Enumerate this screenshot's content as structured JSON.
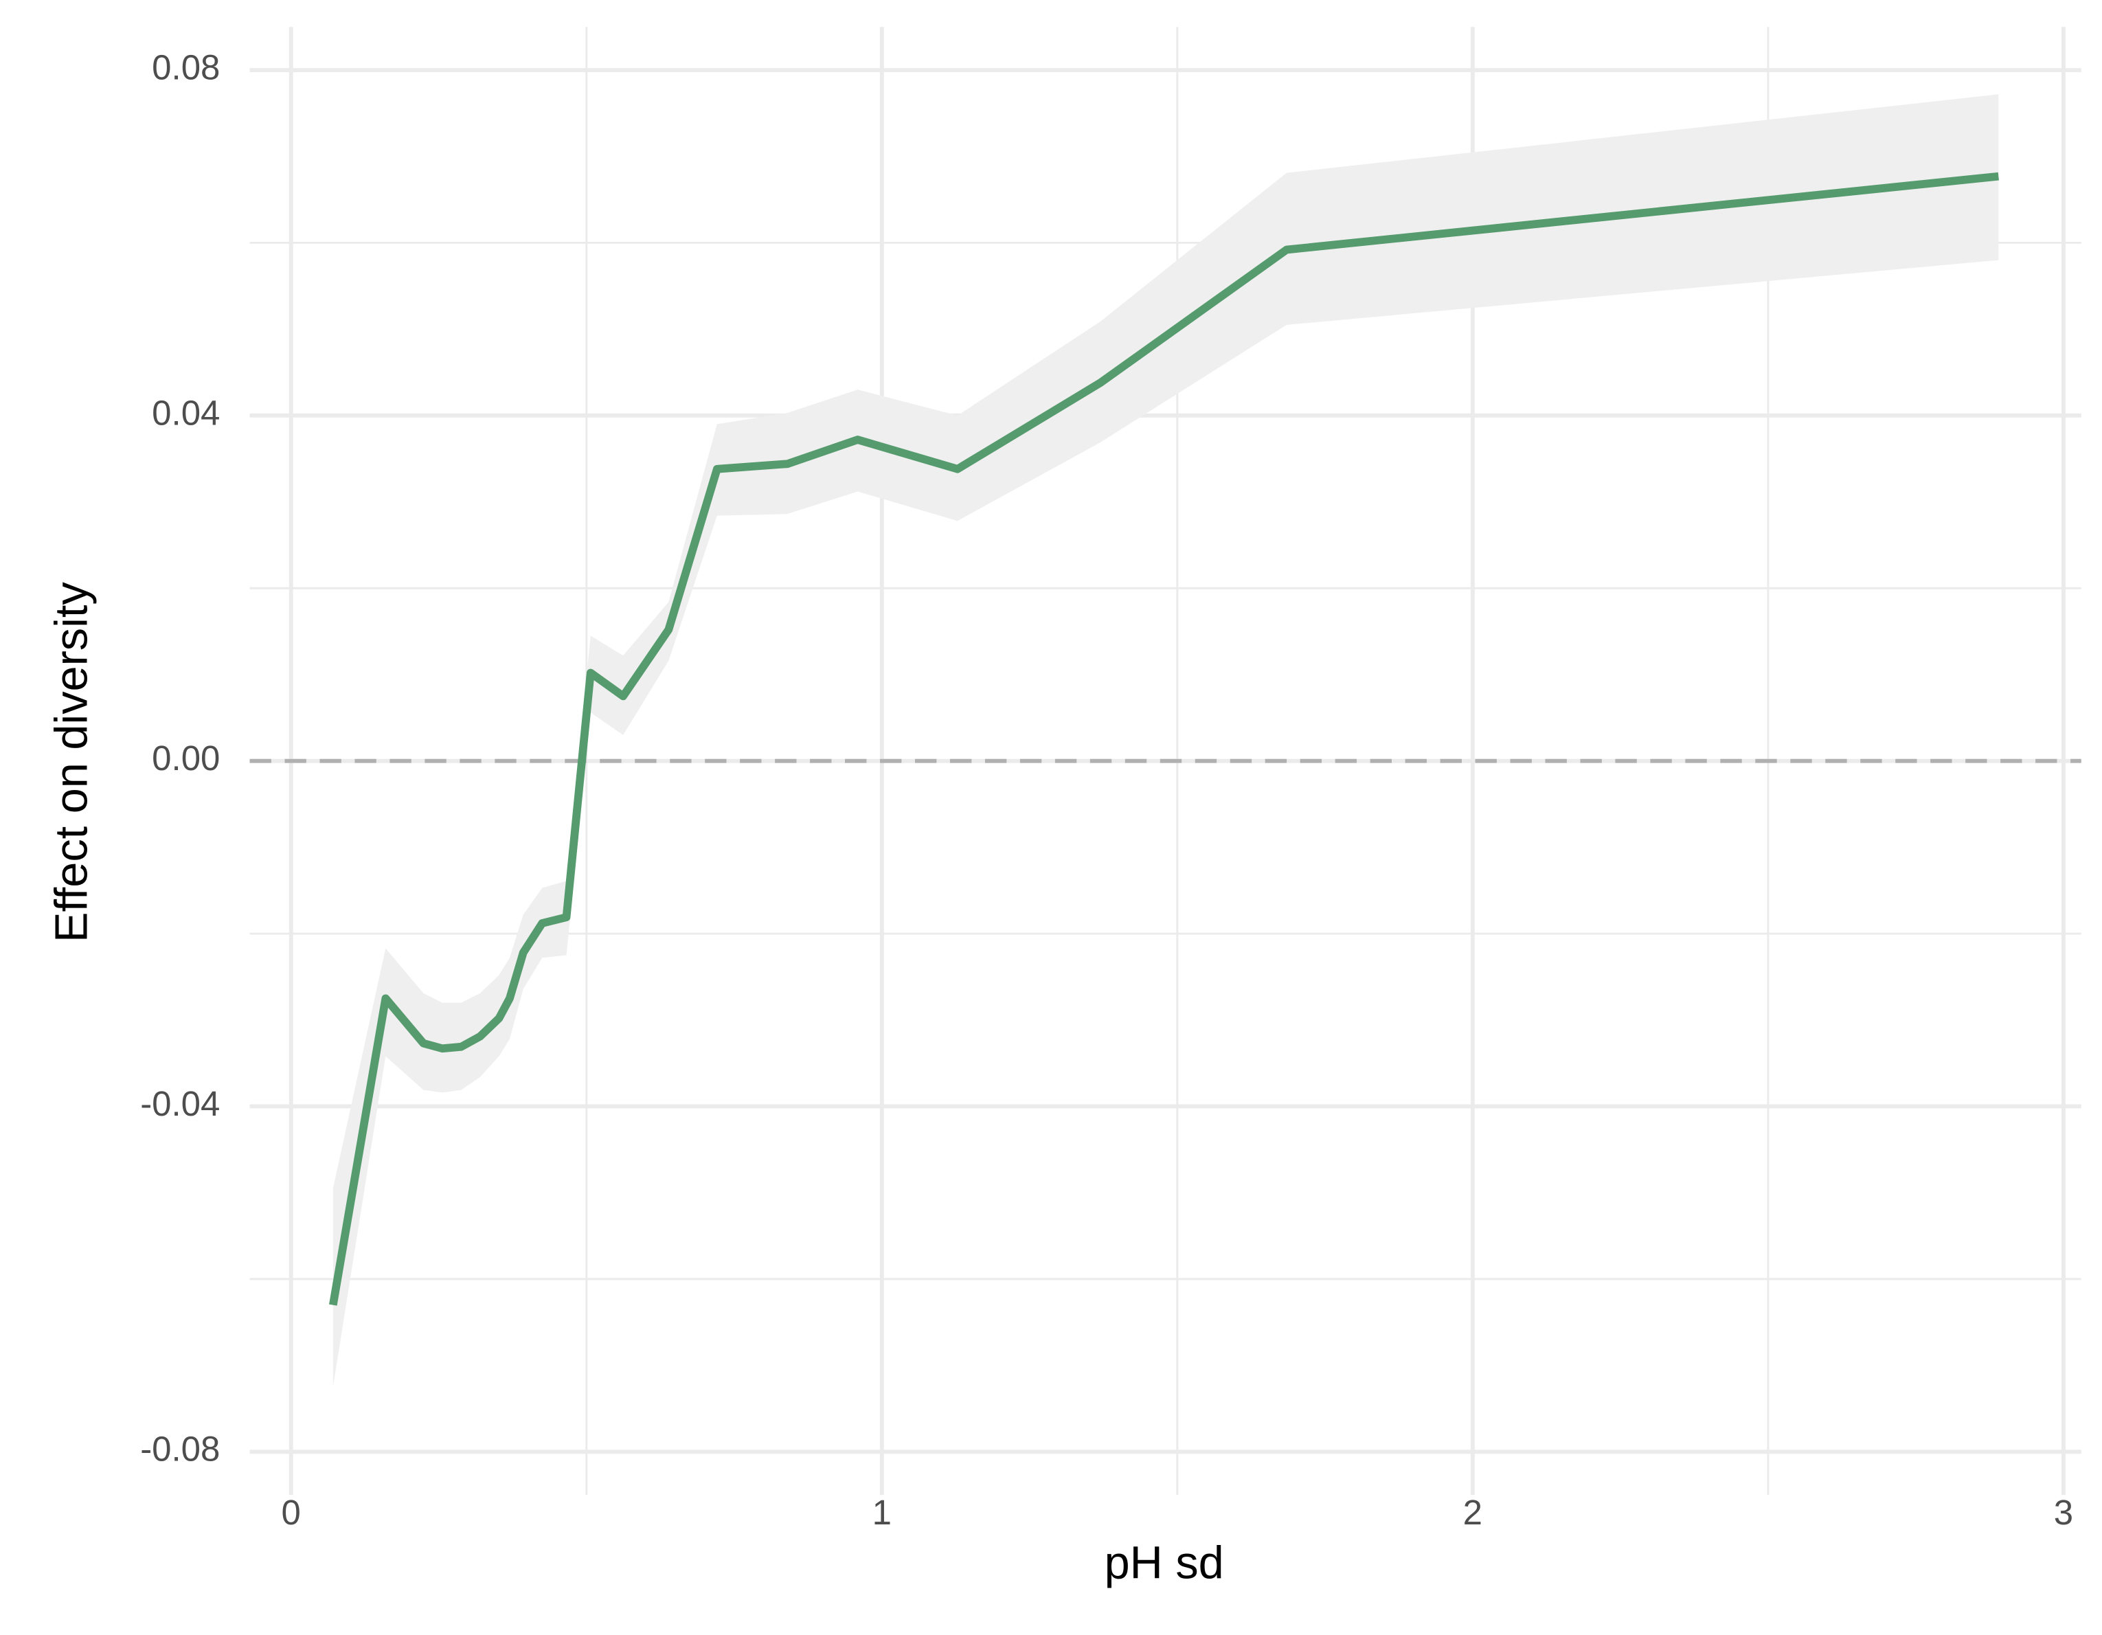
{
  "chart_data": {
    "type": "line",
    "x_label": "pH sd",
    "y_label": "Effect on diversity",
    "x": [
      0.071,
      0.16,
      0.224,
      0.256,
      0.288,
      0.32,
      0.352,
      0.37,
      0.393,
      0.425,
      0.466,
      0.507,
      0.562,
      0.639,
      0.721,
      0.84,
      0.959,
      1.128,
      1.37,
      1.685,
      2.89
    ],
    "series": [
      {
        "color": "#559b6d",
        "band_color": "#efefef",
        "values": [
          -0.063,
          -0.0275,
          -0.0327,
          -0.0333,
          -0.0331,
          -0.0319,
          -0.0298,
          -0.0275,
          -0.0222,
          -0.0188,
          -0.0181,
          0.0102,
          0.0075,
          0.0152,
          0.0338,
          0.0344,
          0.0372,
          0.0338,
          0.0438,
          0.0592,
          0.0677
        ],
        "lower": [
          -0.0725,
          -0.0342,
          -0.0381,
          -0.0384,
          -0.0381,
          -0.0366,
          -0.0342,
          -0.0322,
          -0.0264,
          -0.0228,
          -0.0225,
          0.0056,
          0.003,
          0.0116,
          0.0284,
          0.0286,
          0.0312,
          0.0278,
          0.0369,
          0.0505,
          0.058
        ],
        "upper": [
          -0.0495,
          -0.0217,
          -0.0269,
          -0.028,
          -0.028,
          -0.0269,
          -0.0248,
          -0.0228,
          -0.0178,
          -0.0147,
          -0.0139,
          0.0145,
          0.0122,
          0.0184,
          0.039,
          0.0403,
          0.043,
          0.04,
          0.0509,
          0.0681,
          0.0772
        ]
      }
    ],
    "reference_line": {
      "value": 0,
      "color": "#b0b0b0",
      "dashed": true
    },
    "xlim": [
      -0.07,
      3.03
    ],
    "ylim": [
      -0.085,
      0.085
    ],
    "xticks": [
      0,
      1,
      2,
      3
    ],
    "xminor": [
      0.5,
      1.5,
      2.5
    ],
    "yticks": [
      {
        "value": -0.08,
        "label": "-0.08"
      },
      {
        "value": -0.04,
        "label": "-0.04"
      },
      {
        "value": 0,
        "label": "0.00"
      },
      {
        "value": 0.04,
        "label": "0.04"
      },
      {
        "value": 0.08,
        "label": "0.08"
      }
    ],
    "yminor": [
      -0.06,
      -0.02,
      0.02,
      0.06
    ],
    "grid": true
  }
}
